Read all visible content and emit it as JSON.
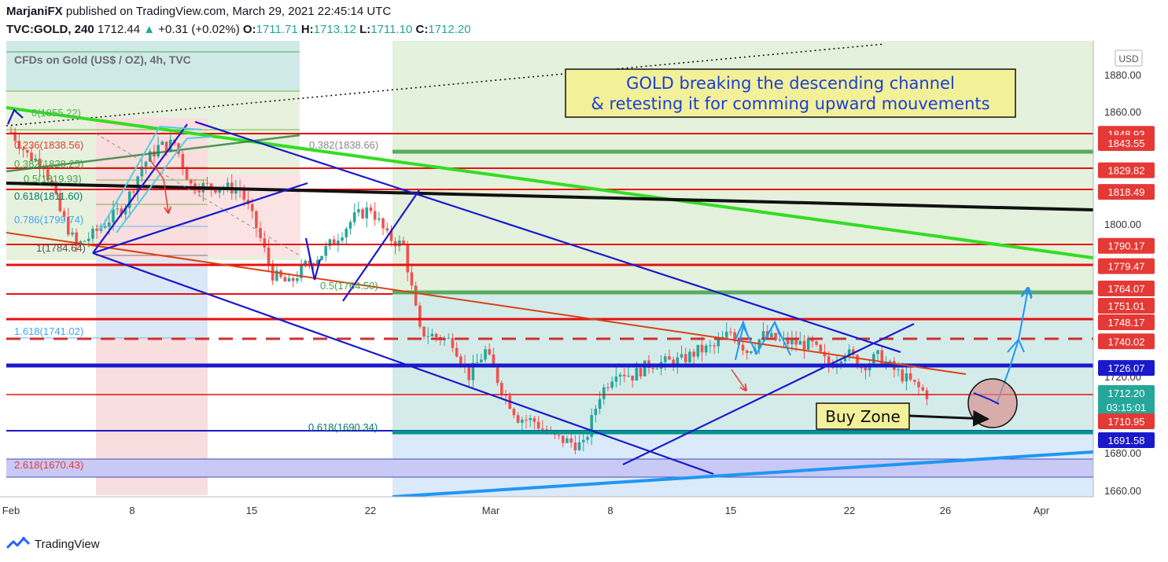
{
  "header": {
    "author": "MarjaniFX",
    "published_text": "published on TradingView.com, March 29, 2021 22:45:14 UTC",
    "symbol": "TVC:GOLD, 240",
    "last": "1712.44",
    "change": "+0.31 (+0.02%)",
    "open_label": "O:",
    "open": "1711.71",
    "high_label": "H:",
    "high": "1713.12",
    "low_label": "L:",
    "low": "1711.10",
    "close_label": "C:",
    "close": "1712.20"
  },
  "legend_title": "CFDs on Gold (US$ / OZ), 4h, TVC",
  "annotations": {
    "headline_1": "GOLD breaking the descending channel",
    "headline_2": "& retesting it for comming upward mouvements",
    "buy_zone": "Buy Zone"
  },
  "fib_labels": [
    {
      "text": "0(1855.22)",
      "y": 1855.22
    },
    {
      "text": "0.236(1838.56)",
      "y": 1838.56
    },
    {
      "text": "0.382(1828.25)",
      "y": 1828.25
    },
    {
      "text": "0.5(1819.93)",
      "y": 1819.93
    },
    {
      "text": "0.618(1811.60)",
      "y": 1811.6
    },
    {
      "text": "0.786(1799.74)",
      "y": 1799.74
    },
    {
      "text": "1(1784.64)",
      "y": 1784.64
    },
    {
      "text": "1.618(1741.02)",
      "y": 1741.02
    },
    {
      "text": "2.618(1670.43)",
      "y": 1670.43
    },
    {
      "text": "0.382(1838.66)",
      "y": 1838.66
    },
    {
      "text": "0.5(1764.50)",
      "y": 1764.5
    },
    {
      "text": "0.618(1690.34)",
      "y": 1690.34
    }
  ],
  "price_axis": {
    "currency": "USD",
    "ticks": [
      "1880.00",
      "1860.00",
      "1800.00",
      "1720.00",
      "1680.00",
      "1660.00"
    ],
    "tag_values": [
      "1848.93",
      "1843.55",
      "1829.82",
      "1818.49",
      "1790.17",
      "1779.47",
      "1764.07",
      "1751.01",
      "1748.17",
      "1740.02",
      "1726.07",
      "1712.20",
      "1710.95",
      "1691.58"
    ],
    "countdown": "03:15:01"
  },
  "time_axis": {
    "labels": [
      "Feb",
      "8",
      "15",
      "22",
      "Mar",
      "8",
      "15",
      "22",
      "26",
      "Apr"
    ]
  },
  "colors": {
    "up": "#26a69a",
    "down": "#ef5350",
    "channel": "#1a1acc",
    "green_line": "#33dd22",
    "black_line": "#111111",
    "red_level": "#e81010",
    "blue_level": "#1a1acc",
    "teal_level": "#009688",
    "arrow_blue": "#2196f3",
    "headline_bg": "#f3f09a"
  },
  "chart_data": {
    "type": "candlestick",
    "symbol": "TVC:GOLD",
    "timeframe": "240",
    "x_range": [
      "2021-02-01",
      "2021-04-05"
    ],
    "ylim": [
      1655,
      1890
    ],
    "close_path": [
      [
        "2021-02-01",
        1850
      ],
      [
        "2021-02-02",
        1838
      ],
      [
        "2021-02-03",
        1833
      ],
      [
        "2021-02-04",
        1808
      ],
      [
        "2021-02-05",
        1790
      ],
      [
        "2021-02-06",
        1796
      ],
      [
        "2021-02-08",
        1812
      ],
      [
        "2021-02-09",
        1832
      ],
      [
        "2021-02-10",
        1842
      ],
      [
        "2021-02-11",
        1844
      ],
      [
        "2021-02-12",
        1822
      ],
      [
        "2021-02-15",
        1820
      ],
      [
        "2021-02-16",
        1800
      ],
      [
        "2021-02-17",
        1775
      ],
      [
        "2021-02-18",
        1770
      ],
      [
        "2021-02-19",
        1780
      ],
      [
        "2021-02-20",
        1786
      ],
      [
        "2021-02-22",
        1805
      ],
      [
        "2021-02-23",
        1810
      ],
      [
        "2021-02-24",
        1795
      ],
      [
        "2021-02-25",
        1790
      ],
      [
        "2021-02-26",
        1745
      ],
      [
        "2021-02-28",
        1740
      ],
      [
        "2021-03-01",
        1722
      ],
      [
        "2021-03-02",
        1735
      ],
      [
        "2021-03-03",
        1715
      ],
      [
        "2021-03-04",
        1700
      ],
      [
        "2021-03-05",
        1698
      ],
      [
        "2021-03-06",
        1690
      ],
      [
        "2021-03-08",
        1685
      ],
      [
        "2021-03-09",
        1712
      ],
      [
        "2021-03-10",
        1725
      ],
      [
        "2021-03-11",
        1722
      ],
      [
        "2021-03-12",
        1728
      ],
      [
        "2021-03-14",
        1730
      ],
      [
        "2021-03-15",
        1735
      ],
      [
        "2021-03-16",
        1737
      ],
      [
        "2021-03-17",
        1745
      ],
      [
        "2021-03-18",
        1735
      ],
      [
        "2021-03-19",
        1743
      ],
      [
        "2021-03-20",
        1740
      ],
      [
        "2021-03-22",
        1738
      ],
      [
        "2021-03-23",
        1727
      ],
      [
        "2021-03-24",
        1735
      ],
      [
        "2021-03-25",
        1727
      ],
      [
        "2021-03-26",
        1732
      ],
      [
        "2021-03-27",
        1725
      ],
      [
        "2021-03-29",
        1712.2
      ]
    ]
  }
}
